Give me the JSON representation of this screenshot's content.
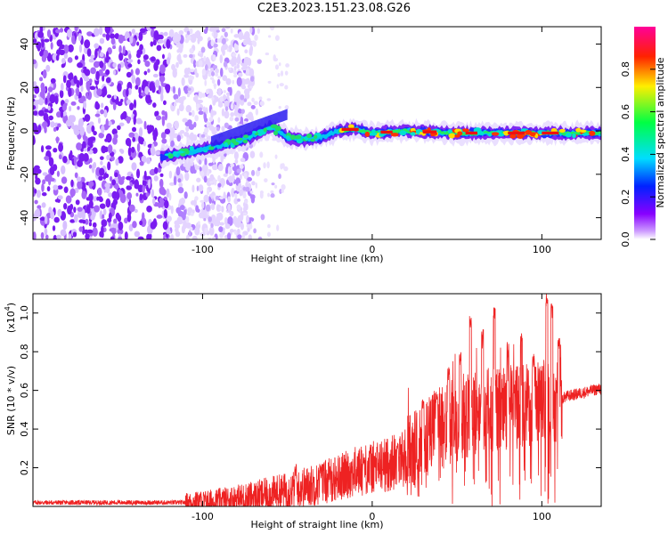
{
  "title": "C2E3.2023.151.23.08.G26",
  "colors": {
    "snr_line": "#ee2222",
    "frame": "#000000",
    "background": "#ffffff"
  },
  "chart_data": [
    {
      "type": "heatmap",
      "name": "spectrogram",
      "xlabel": "Height of straight line (km)",
      "ylabel": "Frequency (Hz)",
      "xlim": [
        -200,
        135
      ],
      "ylim": [
        -50,
        48
      ],
      "xticks": [
        -100,
        0,
        100
      ],
      "xtick_labels": [
        "-100",
        "0",
        "100"
      ],
      "yticks": [
        -40,
        -20,
        0,
        20,
        40
      ],
      "ytick_labels": [
        "-40",
        "-20",
        "0",
        "20",
        "40"
      ],
      "colorbar": {
        "label": "Normalized spectral amplitude",
        "range": [
          0,
          1
        ],
        "ticks": [
          0.0,
          0.2,
          0.4,
          0.6,
          0.8
        ],
        "tick_labels": [
          "0.0",
          "0.2",
          "0.4",
          "0.6",
          "0.8"
        ],
        "colormap": "rainbow: violet-blue-cyan-green-yellow-red-magenta"
      },
      "signal_trace": [
        {
          "x": -125,
          "y": -12
        },
        {
          "x": -110,
          "y": -10
        },
        {
          "x": -90,
          "y": -7
        },
        {
          "x": -75,
          "y": -4
        },
        {
          "x": -60,
          "y": 2
        },
        {
          "x": -50,
          "y": -3
        },
        {
          "x": -40,
          "y": -4
        },
        {
          "x": -30,
          "y": -3
        },
        {
          "x": -20,
          "y": 0
        },
        {
          "x": -10,
          "y": 1
        },
        {
          "x": 0,
          "y": -1
        },
        {
          "x": 20,
          "y": 0
        },
        {
          "x": 50,
          "y": -1
        },
        {
          "x": 80,
          "y": -1
        },
        {
          "x": 100,
          "y": -1
        },
        {
          "x": 135,
          "y": -1
        }
      ]
    },
    {
      "type": "line",
      "name": "snr",
      "xlabel": "Height of straight line (km)",
      "ylabel": "SNR (10 * v/v)",
      "y_multiplier_label": "(x10",
      "y_multiplier_exp": "4",
      "y_multiplier_close": ")",
      "xlim": [
        -200,
        135
      ],
      "ylim": [
        0,
        1.1
      ],
      "xticks": [
        -100,
        0,
        100
      ],
      "xtick_labels": [
        "-100",
        "0",
        "100"
      ],
      "yticks": [
        0.2,
        0.4,
        0.6,
        0.8,
        1.0
      ],
      "ytick_labels": [
        "0.2",
        "0.4",
        "0.6",
        "0.8",
        "1.0"
      ],
      "series": [
        {
          "name": "SNR",
          "envelope": [
            {
              "x": -200,
              "y": 0.02
            },
            {
              "x": -110,
              "y": 0.02
            },
            {
              "x": -90,
              "y": 0.03
            },
            {
              "x": -70,
              "y": 0.05
            },
            {
              "x": -50,
              "y": 0.08
            },
            {
              "x": -30,
              "y": 0.12
            },
            {
              "x": -10,
              "y": 0.18
            },
            {
              "x": 10,
              "y": 0.22
            },
            {
              "x": 25,
              "y": 0.28
            },
            {
              "x": 35,
              "y": 0.38
            },
            {
              "x": 50,
              "y": 0.45
            },
            {
              "x": 70,
              "y": 0.5
            },
            {
              "x": 90,
              "y": 0.52
            },
            {
              "x": 105,
              "y": 0.55
            },
            {
              "x": 110,
              "y": 0.55
            },
            {
              "x": 115,
              "y": 0.57
            },
            {
              "x": 135,
              "y": 0.61
            }
          ],
          "spikes": [
            {
              "x": -45,
              "y": 0.22
            },
            {
              "x": -30,
              "y": 0.22
            },
            {
              "x": -5,
              "y": 0.28
            },
            {
              "x": 15,
              "y": 0.33
            },
            {
              "x": 30,
              "y": 0.58
            },
            {
              "x": 38,
              "y": 0.61
            },
            {
              "x": 45,
              "y": 0.72
            },
            {
              "x": 52,
              "y": 0.8
            },
            {
              "x": 58,
              "y": 1.0
            },
            {
              "x": 65,
              "y": 0.92
            },
            {
              "x": 72,
              "y": 1.05
            },
            {
              "x": 80,
              "y": 0.85
            },
            {
              "x": 88,
              "y": 0.9
            },
            {
              "x": 95,
              "y": 0.8
            },
            {
              "x": 103,
              "y": 1.1
            },
            {
              "x": 106,
              "y": 1.05
            },
            {
              "x": 110,
              "y": 0.88
            }
          ]
        }
      ]
    }
  ]
}
